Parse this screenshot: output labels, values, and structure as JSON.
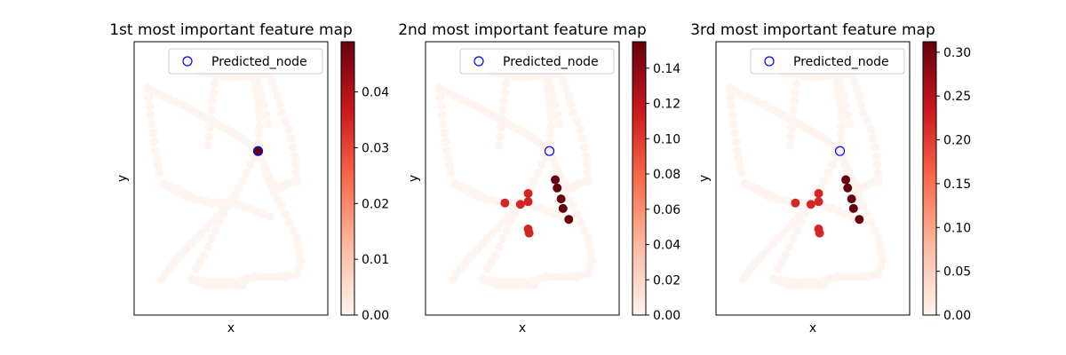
{
  "chart_data": [
    {
      "type": "scatter",
      "title": "1st most important feature map",
      "xlabel": "x",
      "ylabel": "y",
      "legend": {
        "label": "Predicted_node",
        "placement": "top-right"
      },
      "colorbar": {
        "vmin": 0.0,
        "vmax": 0.049,
        "ticks": [
          "0.00",
          "0.01",
          "0.02",
          "0.03",
          "0.04"
        ],
        "tick_values": [
          0.0,
          0.01,
          0.02,
          0.03,
          0.04
        ]
      },
      "predicted_node": [
        0.64,
        0.6
      ],
      "points": [
        {
          "x": 0.64,
          "y": 0.6,
          "v": 0.049
        }
      ]
    },
    {
      "type": "scatter",
      "title": "2nd most important feature map",
      "xlabel": "x",
      "ylabel": "y",
      "legend": {
        "label": "Predicted_node",
        "placement": "top-right"
      },
      "colorbar": {
        "vmin": 0.0,
        "vmax": 0.155,
        "ticks": [
          "0.00",
          "0.02",
          "0.04",
          "0.06",
          "0.08",
          "0.10",
          "0.12",
          "0.14"
        ],
        "tick_values": [
          0.0,
          0.02,
          0.04,
          0.06,
          0.08,
          0.1,
          0.12,
          0.14
        ]
      },
      "predicted_node": [
        0.64,
        0.6
      ],
      "points": [
        {
          "x": 0.67,
          "y": 0.495,
          "v": 0.155
        },
        {
          "x": 0.68,
          "y": 0.465,
          "v": 0.155
        },
        {
          "x": 0.7,
          "y": 0.425,
          "v": 0.155
        },
        {
          "x": 0.71,
          "y": 0.39,
          "v": 0.155
        },
        {
          "x": 0.74,
          "y": 0.35,
          "v": 0.155
        },
        {
          "x": 0.53,
          "y": 0.445,
          "v": 0.11
        },
        {
          "x": 0.53,
          "y": 0.415,
          "v": 0.11
        },
        {
          "x": 0.49,
          "y": 0.405,
          "v": 0.11
        },
        {
          "x": 0.41,
          "y": 0.41,
          "v": 0.11
        },
        {
          "x": 0.53,
          "y": 0.315,
          "v": 0.11
        },
        {
          "x": 0.535,
          "y": 0.3,
          "v": 0.11
        }
      ]
    },
    {
      "type": "scatter",
      "title": "3rd most important feature map",
      "xlabel": "x",
      "ylabel": "y",
      "legend": {
        "label": "Predicted_node",
        "placement": "top-right"
      },
      "colorbar": {
        "vmin": 0.0,
        "vmax": 0.312,
        "ticks": [
          "0.00",
          "0.05",
          "0.10",
          "0.15",
          "0.20",
          "0.25",
          "0.30"
        ],
        "tick_values": [
          0.0,
          0.05,
          0.1,
          0.15,
          0.2,
          0.25,
          0.3
        ]
      },
      "predicted_node": [
        0.64,
        0.6
      ],
      "points": [
        {
          "x": 0.67,
          "y": 0.495,
          "v": 0.312
        },
        {
          "x": 0.68,
          "y": 0.465,
          "v": 0.312
        },
        {
          "x": 0.7,
          "y": 0.425,
          "v": 0.312
        },
        {
          "x": 0.71,
          "y": 0.39,
          "v": 0.312
        },
        {
          "x": 0.74,
          "y": 0.35,
          "v": 0.312
        },
        {
          "x": 0.53,
          "y": 0.445,
          "v": 0.22
        },
        {
          "x": 0.53,
          "y": 0.415,
          "v": 0.22
        },
        {
          "x": 0.49,
          "y": 0.405,
          "v": 0.22
        },
        {
          "x": 0.41,
          "y": 0.41,
          "v": 0.22
        },
        {
          "x": 0.53,
          "y": 0.315,
          "v": 0.22
        },
        {
          "x": 0.535,
          "y": 0.3,
          "v": 0.22
        }
      ]
    }
  ],
  "network_paths": [
    [
      [
        0.07,
        0.83
      ],
      [
        0.15,
        0.8
      ],
      [
        0.25,
        0.77
      ],
      [
        0.35,
        0.73
      ],
      [
        0.45,
        0.69
      ],
      [
        0.55,
        0.65
      ],
      [
        0.64,
        0.6
      ]
    ],
    [
      [
        0.07,
        0.83
      ],
      [
        0.09,
        0.7
      ],
      [
        0.11,
        0.6
      ],
      [
        0.13,
        0.52
      ],
      [
        0.15,
        0.48
      ]
    ],
    [
      [
        0.15,
        0.48
      ],
      [
        0.28,
        0.43
      ],
      [
        0.4,
        0.41
      ],
      [
        0.5,
        0.41
      ],
      [
        0.6,
        0.39
      ],
      [
        0.7,
        0.36
      ]
    ],
    [
      [
        0.15,
        0.48
      ],
      [
        0.22,
        0.46
      ],
      [
        0.3,
        0.43
      ]
    ],
    [
      [
        0.64,
        0.6
      ],
      [
        0.65,
        0.72
      ],
      [
        0.63,
        0.83
      ],
      [
        0.62,
        0.88
      ]
    ],
    [
      [
        0.64,
        0.6
      ],
      [
        0.67,
        0.55
      ],
      [
        0.7,
        0.5
      ],
      [
        0.74,
        0.46
      ],
      [
        0.79,
        0.48
      ],
      [
        0.84,
        0.49
      ]
    ],
    [
      [
        0.84,
        0.49
      ],
      [
        0.83,
        0.58
      ],
      [
        0.8,
        0.68
      ],
      [
        0.76,
        0.74
      ],
      [
        0.74,
        0.8
      ],
      [
        0.7,
        0.88
      ]
    ],
    [
      [
        0.7,
        0.88
      ],
      [
        0.62,
        0.88
      ],
      [
        0.5,
        0.87
      ],
      [
        0.42,
        0.88
      ],
      [
        0.34,
        0.89
      ]
    ],
    [
      [
        0.62,
        0.88
      ],
      [
        0.66,
        0.8
      ],
      [
        0.69,
        0.7
      ]
    ],
    [
      [
        0.64,
        0.6
      ],
      [
        0.6,
        0.55
      ],
      [
        0.56,
        0.49
      ],
      [
        0.52,
        0.44
      ],
      [
        0.48,
        0.4
      ]
    ],
    [
      [
        0.64,
        0.6
      ],
      [
        0.68,
        0.52
      ],
      [
        0.72,
        0.45
      ],
      [
        0.76,
        0.4
      ],
      [
        0.8,
        0.34
      ],
      [
        0.84,
        0.28
      ],
      [
        0.86,
        0.2
      ],
      [
        0.84,
        0.15
      ],
      [
        0.78,
        0.14
      ]
    ],
    [
      [
        0.48,
        0.4
      ],
      [
        0.4,
        0.34
      ],
      [
        0.32,
        0.28
      ],
      [
        0.24,
        0.22
      ],
      [
        0.18,
        0.17
      ],
      [
        0.14,
        0.13
      ]
    ],
    [
      [
        0.48,
        0.4
      ],
      [
        0.44,
        0.34
      ],
      [
        0.4,
        0.28
      ],
      [
        0.36,
        0.22
      ],
      [
        0.32,
        0.17
      ],
      [
        0.3,
        0.13
      ]
    ],
    [
      [
        0.3,
        0.13
      ],
      [
        0.4,
        0.12
      ],
      [
        0.52,
        0.12
      ],
      [
        0.62,
        0.14
      ],
      [
        0.72,
        0.14
      ],
      [
        0.78,
        0.14
      ]
    ],
    [
      [
        0.3,
        0.13
      ],
      [
        0.38,
        0.11
      ],
      [
        0.44,
        0.11
      ],
      [
        0.5,
        0.11
      ],
      [
        0.56,
        0.11
      ]
    ],
    [
      [
        0.42,
        0.88
      ],
      [
        0.4,
        0.75
      ],
      [
        0.38,
        0.62
      ]
    ]
  ]
}
